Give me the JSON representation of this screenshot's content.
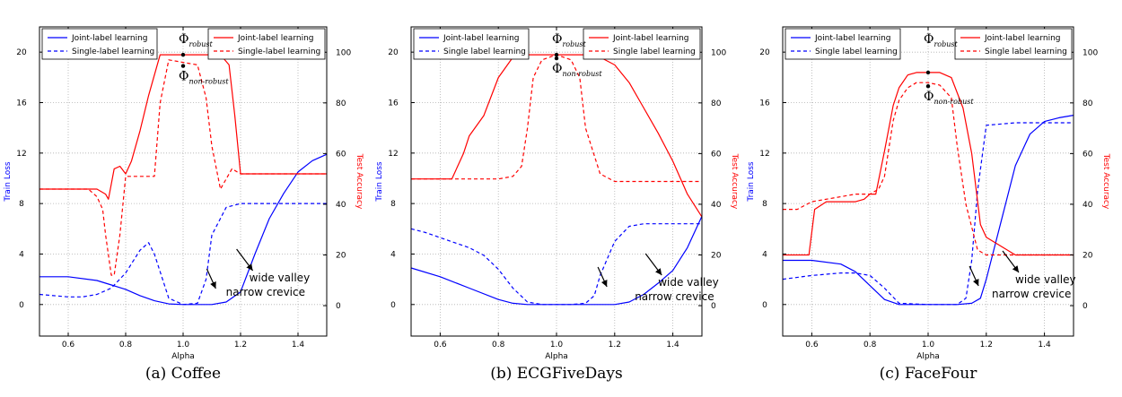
{
  "colors": {
    "train_loss": "#0000ff",
    "test_accuracy": "#ff0000",
    "axes": "#000000",
    "grid": "#b0b0b0"
  },
  "legend": {
    "joint": "Joint-label learning",
    "single_coffee": "Single-label learning",
    "single_other": "Single label learning"
  },
  "chart_data": [
    {
      "id": "coffee",
      "caption": "(a) Coffee",
      "type": "line",
      "xlabel": "Alpha",
      "ylabel_left": "Train Loss",
      "ylabel_right": "Test Accuracy",
      "xlim": [
        0.5,
        1.5
      ],
      "ylim_left": [
        -2.5,
        22
      ],
      "ylim_right": [
        -12,
        110
      ],
      "xticks": [
        0.6,
        0.8,
        1.0,
        1.2,
        1.4
      ],
      "xtick_labels": [
        "0.6",
        "0.8",
        "1.0",
        "1.2",
        "1.4"
      ],
      "yticks_left": [
        0,
        4,
        8,
        12,
        16,
        20
      ],
      "yticks_left_labels": [
        "0",
        "4",
        "8",
        "12",
        "16",
        "20"
      ],
      "yticks_right": [
        0,
        20,
        40,
        60,
        80,
        100
      ],
      "yticks_right_labels": [
        "0",
        "20",
        "40",
        "60",
        "80",
        "100"
      ],
      "grid": true,
      "series": [
        {
          "name": "Joint-label learning",
          "axis": "left",
          "style": "solid",
          "color": "blue",
          "x": [
            0.5,
            0.6,
            0.7,
            0.8,
            0.85,
            0.9,
            0.95,
            1.0,
            1.05,
            1.1,
            1.15,
            1.2,
            1.25,
            1.3,
            1.35,
            1.4,
            1.45,
            1.5
          ],
          "y": [
            2.2,
            2.2,
            1.9,
            1.2,
            0.7,
            0.3,
            0.05,
            0.0,
            0.0,
            0.0,
            0.2,
            1.0,
            4.0,
            6.8,
            8.8,
            10.5,
            11.4,
            11.9
          ]
        },
        {
          "name": "Single-label learning",
          "axis": "left",
          "style": "dashed",
          "color": "blue",
          "x": [
            0.5,
            0.6,
            0.65,
            0.7,
            0.75,
            0.8,
            0.85,
            0.88,
            0.9,
            0.95,
            1.0,
            1.05,
            1.08,
            1.1,
            1.15,
            1.2,
            1.3,
            1.4,
            1.5
          ],
          "y": [
            0.8,
            0.6,
            0.6,
            0.8,
            1.3,
            2.5,
            4.3,
            4.9,
            4.0,
            0.5,
            0.0,
            0.1,
            2.0,
            5.5,
            7.7,
            8.0,
            8.0,
            8.0,
            8.0
          ]
        },
        {
          "name": "Joint-label learning",
          "axis": "right",
          "style": "solid",
          "color": "red",
          "x": [
            0.5,
            0.6,
            0.7,
            0.73,
            0.74,
            0.76,
            0.78,
            0.8,
            0.82,
            0.85,
            0.88,
            0.92,
            0.95,
            1.0,
            1.05,
            1.1,
            1.13,
            1.16,
            1.18,
            1.2,
            1.3,
            1.4,
            1.5
          ],
          "y": [
            46,
            46,
            46,
            44,
            42,
            54,
            55,
            52,
            57,
            69,
            83,
            99,
            99,
            99,
            99,
            99,
            99,
            95,
            75,
            52,
            52,
            52,
            52
          ]
        },
        {
          "name": "Single-label learning",
          "axis": "right",
          "style": "dashed",
          "color": "red",
          "x": [
            0.5,
            0.6,
            0.67,
            0.7,
            0.72,
            0.73,
            0.75,
            0.76,
            0.78,
            0.8,
            0.85,
            0.9,
            0.92,
            0.95,
            1.0,
            1.05,
            1.08,
            1.1,
            1.13,
            1.15,
            1.17,
            1.2,
            1.3,
            1.4,
            1.5
          ],
          "y": [
            46,
            46,
            46,
            43,
            38,
            28,
            12,
            12,
            28,
            51,
            51,
            51,
            80,
            97,
            96,
            95,
            82,
            63,
            46,
            50,
            54,
            52,
            52,
            52,
            52
          ]
        }
      ],
      "annotations": {
        "phi_robust_symbol": "Φ",
        "phi_robust_sub": "robust",
        "phi_nonrobust_symbol": "Φ",
        "phi_nonrobust_sub": "non-robust",
        "wide_valley": "wide valley",
        "narrow_crevice": "narrow crevice"
      }
    },
    {
      "id": "ecg",
      "caption": "(b) ECGFiveDays",
      "type": "line",
      "xlabel": "Alpha",
      "ylabel_left": "Train Loss",
      "ylabel_right": "Test Accuracy",
      "xlim": [
        0.5,
        1.5
      ],
      "ylim_left": [
        -2.5,
        22
      ],
      "ylim_right": [
        -12,
        110
      ],
      "xticks": [
        0.6,
        0.8,
        1.0,
        1.2,
        1.4
      ],
      "xtick_labels": [
        "0.6",
        "0.8",
        "1.0",
        "1.2",
        "1.4"
      ],
      "yticks_left": [
        0,
        4,
        8,
        12,
        16,
        20
      ],
      "yticks_left_labels": [
        "0",
        "4",
        "8",
        "12",
        "16",
        "20"
      ],
      "yticks_right": [
        0,
        20,
        40,
        60,
        80,
        100
      ],
      "yticks_right_labels": [
        "0",
        "20",
        "40",
        "60",
        "80",
        "100"
      ],
      "grid": true,
      "series": [
        {
          "name": "Joint-label learning",
          "axis": "left",
          "style": "solid",
          "color": "blue",
          "x": [
            0.5,
            0.6,
            0.7,
            0.8,
            0.85,
            0.9,
            1.0,
            1.1,
            1.2,
            1.25,
            1.3,
            1.35,
            1.4,
            1.45,
            1.5
          ],
          "y": [
            2.9,
            2.2,
            1.3,
            0.4,
            0.1,
            0.0,
            0.0,
            0.0,
            0.0,
            0.2,
            0.8,
            1.7,
            2.7,
            4.5,
            7.0
          ]
        },
        {
          "name": "Single label learning",
          "axis": "left",
          "style": "dashed",
          "color": "blue",
          "x": [
            0.5,
            0.55,
            0.6,
            0.65,
            0.7,
            0.75,
            0.8,
            0.85,
            0.9,
            0.95,
            1.0,
            1.05,
            1.1,
            1.13,
            1.15,
            1.2,
            1.25,
            1.3,
            1.4,
            1.5
          ],
          "y": [
            6.0,
            5.7,
            5.3,
            4.9,
            4.5,
            3.9,
            2.8,
            1.3,
            0.2,
            0.0,
            0.0,
            0.0,
            0.1,
            0.7,
            2.3,
            5.0,
            6.2,
            6.4,
            6.4,
            6.4
          ]
        },
        {
          "name": "Joint-label learning",
          "axis": "right",
          "style": "solid",
          "color": "red",
          "x": [
            0.5,
            0.6,
            0.64,
            0.68,
            0.7,
            0.75,
            0.8,
            0.85,
            0.9,
            1.0,
            1.1,
            1.15,
            1.2,
            1.25,
            1.3,
            1.35,
            1.4,
            1.45,
            1.5
          ],
          "y": [
            50,
            50,
            50,
            60,
            67,
            75,
            90,
            98,
            99,
            99,
            99,
            98,
            95,
            88,
            78,
            68,
            57,
            44,
            35
          ]
        },
        {
          "name": "Single label learning",
          "axis": "right",
          "style": "dashed",
          "color": "red",
          "x": [
            0.5,
            0.6,
            0.7,
            0.8,
            0.85,
            0.88,
            0.9,
            0.92,
            0.95,
            1.0,
            1.05,
            1.08,
            1.1,
            1.15,
            1.2,
            1.3,
            1.4,
            1.5
          ],
          "y": [
            50,
            50,
            50,
            50,
            51,
            55,
            70,
            90,
            97,
            99,
            97,
            90,
            70,
            52,
            49,
            49,
            49,
            49
          ]
        }
      ],
      "annotations": {
        "phi_robust_symbol": "Φ",
        "phi_robust_sub": "robust",
        "phi_nonrobust_symbol": "Φ",
        "phi_nonrobust_sub": "non-robust",
        "wide_valley": "wide valley",
        "narrow_crevice": "narrow crevice"
      }
    },
    {
      "id": "facefour",
      "caption": "(c) FaceFour",
      "type": "line",
      "xlabel": "Alpha",
      "ylabel_left": "Train Loss",
      "ylabel_right": "Test Accuracy",
      "xlim": [
        0.5,
        1.5
      ],
      "ylim_left": [
        -2.5,
        22
      ],
      "ylim_right": [
        -12,
        110
      ],
      "xticks": [
        0.6,
        0.8,
        1.0,
        1.2,
        1.4
      ],
      "xtick_labels": [
        "0.6",
        "0.8",
        "1.0",
        "1.2",
        "1.4"
      ],
      "yticks_left": [
        0,
        4,
        8,
        12,
        16,
        20
      ],
      "yticks_left_labels": [
        "0",
        "4",
        "8",
        "12",
        "16",
        "20"
      ],
      "yticks_right": [
        0,
        20,
        40,
        60,
        80,
        100
      ],
      "yticks_right_labels": [
        "0",
        "20",
        "40",
        "60",
        "80",
        "100"
      ],
      "grid": true,
      "series": [
        {
          "name": "Joint-label learning",
          "axis": "left",
          "style": "solid",
          "color": "blue",
          "x": [
            0.5,
            0.6,
            0.7,
            0.75,
            0.8,
            0.85,
            0.9,
            0.95,
            1.0,
            1.1,
            1.15,
            1.18,
            1.2,
            1.25,
            1.3,
            1.35,
            1.4,
            1.45,
            1.5
          ],
          "y": [
            3.5,
            3.5,
            3.2,
            2.6,
            1.5,
            0.4,
            0.0,
            0.0,
            0.0,
            0.0,
            0.1,
            0.5,
            2.0,
            6.5,
            11.0,
            13.5,
            14.5,
            14.8,
            15.0
          ]
        },
        {
          "name": "Single label learning",
          "axis": "left",
          "style": "dashed",
          "color": "blue",
          "x": [
            0.5,
            0.6,
            0.7,
            0.75,
            0.8,
            0.85,
            0.9,
            1.0,
            1.1,
            1.13,
            1.15,
            1.17,
            1.2,
            1.3,
            1.4,
            1.5
          ],
          "y": [
            2.0,
            2.3,
            2.5,
            2.5,
            2.3,
            1.3,
            0.1,
            0.0,
            0.0,
            0.5,
            3.5,
            9.0,
            14.2,
            14.4,
            14.4,
            14.4
          ]
        },
        {
          "name": "Joint-label learning",
          "axis": "right",
          "style": "solid",
          "color": "red",
          "x": [
            0.5,
            0.59,
            0.61,
            0.65,
            0.7,
            0.75,
            0.78,
            0.8,
            0.82,
            0.85,
            0.88,
            0.9,
            0.93,
            0.96,
            1.0,
            1.04,
            1.08,
            1.12,
            1.15,
            1.18,
            1.2,
            1.3,
            1.4,
            1.5
          ],
          "y": [
            20,
            20,
            38,
            41,
            41,
            41,
            42,
            44,
            44,
            61,
            79,
            86,
            91,
            92,
            92,
            92,
            90,
            78,
            60,
            32,
            27,
            20,
            20,
            20
          ]
        },
        {
          "name": "Single label learning",
          "axis": "right",
          "style": "dashed",
          "color": "red",
          "x": [
            0.5,
            0.55,
            0.6,
            0.7,
            0.75,
            0.8,
            0.83,
            0.85,
            0.88,
            0.9,
            0.93,
            0.96,
            1.0,
            1.04,
            1.08,
            1.1,
            1.13,
            1.17,
            1.2,
            1.3,
            1.4,
            1.5
          ],
          "y": [
            38,
            38,
            41,
            43,
            44,
            44,
            46,
            51,
            73,
            81,
            86,
            88,
            88,
            87,
            82,
            63,
            40,
            22,
            20,
            20,
            20,
            20
          ]
        }
      ],
      "annotations": {
        "phi_robust_symbol": "Φ",
        "phi_robust_sub": "robust",
        "phi_nonrobust_symbol": "Φ",
        "phi_nonrobust_sub": "non-robust",
        "wide_valley": "wide valley",
        "narrow_crevice": "narrow crevice"
      }
    }
  ]
}
